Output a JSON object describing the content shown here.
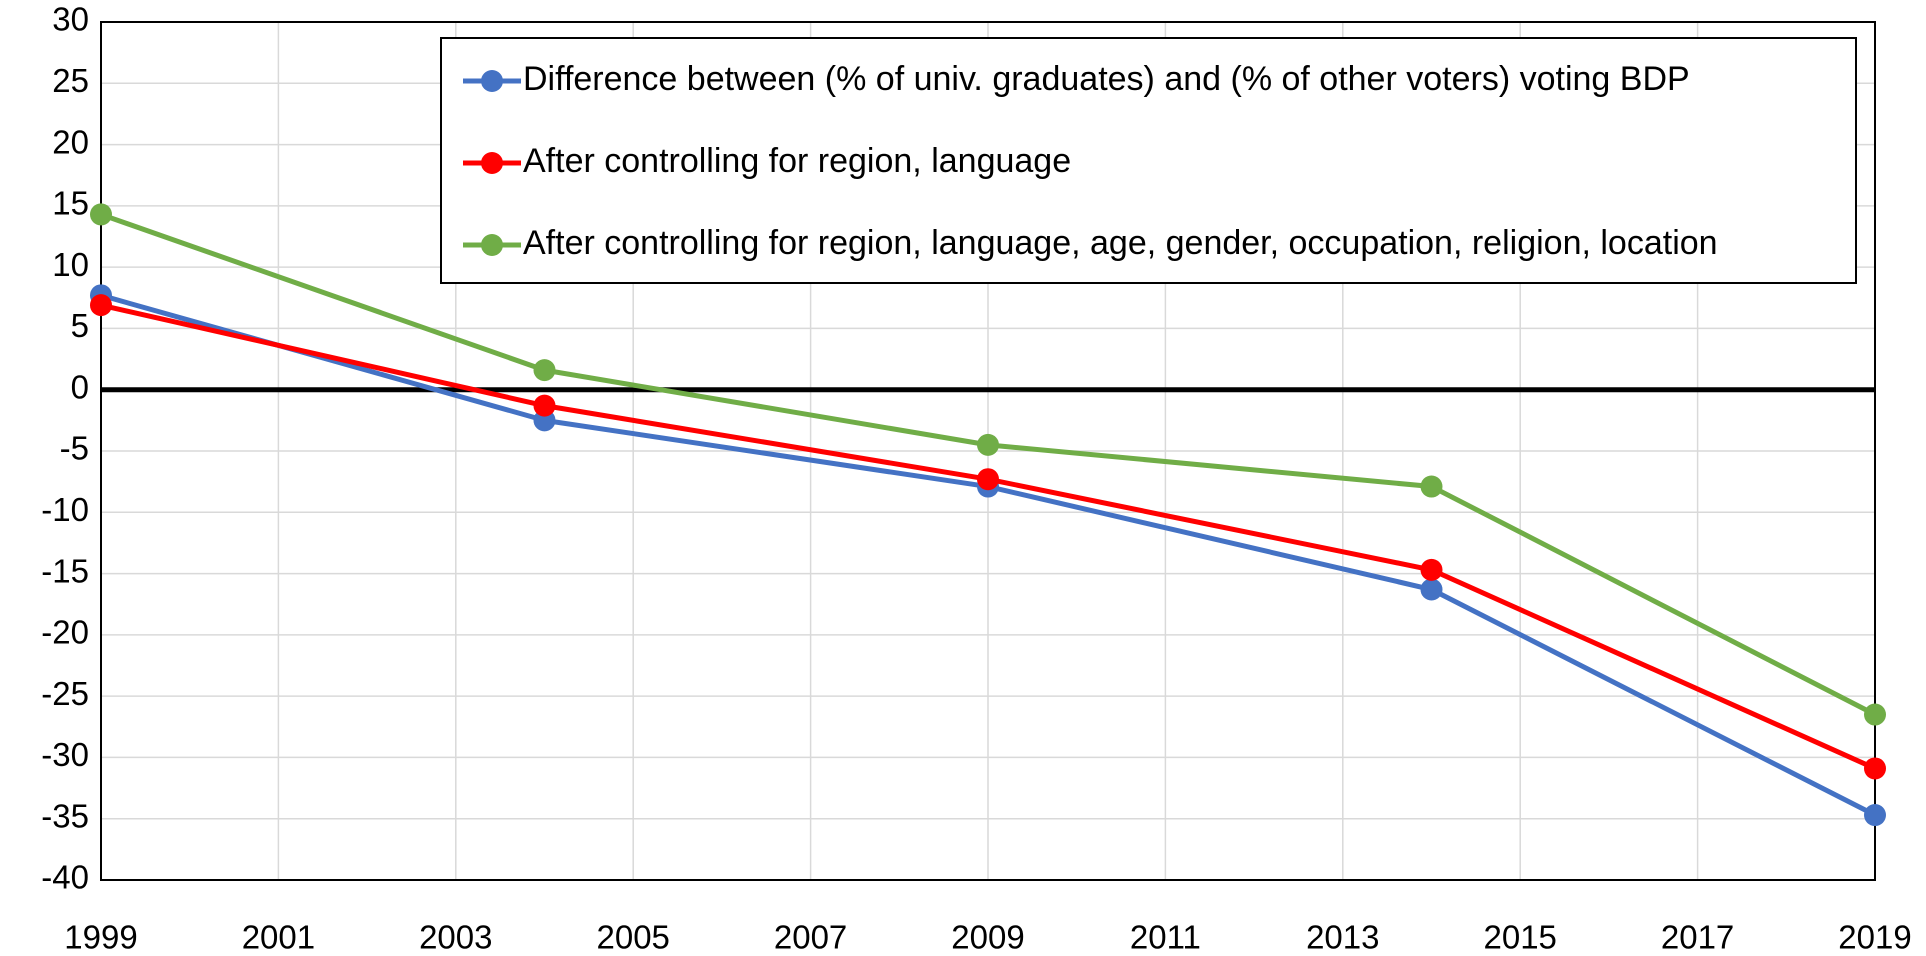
{
  "chart_data": {
    "type": "line",
    "x": [
      1999,
      2004,
      2009,
      2014,
      2019
    ],
    "series": [
      {
        "name": "Difference between (% of univ. graduates) and (% of other voters) voting BDP",
        "color": "#4472c4",
        "values": [
          7.7,
          -2.5,
          -7.9,
          -16.3,
          -34.7
        ]
      },
      {
        "name": "After controlling for region, language",
        "color": "#ff0000",
        "values": [
          6.9,
          -1.3,
          -7.3,
          -14.7,
          -30.9
        ]
      },
      {
        "name": "After controlling for region, language, age, gender, occupation, religion, location",
        "color": "#70ad47",
        "values": [
          14.3,
          1.6,
          -4.5,
          -7.9,
          -26.5
        ]
      }
    ],
    "xlim": [
      1999,
      2019
    ],
    "xticks": [
      1999,
      2001,
      2003,
      2005,
      2007,
      2009,
      2011,
      2013,
      2015,
      2017,
      2019
    ],
    "ylim": [
      -40,
      30
    ],
    "yticks": [
      -40,
      -35,
      -30,
      -25,
      -20,
      -15,
      -10,
      -5,
      0,
      5,
      10,
      15,
      20,
      25,
      30
    ],
    "grid": true,
    "zero_line": true,
    "legend": "upper-right"
  }
}
